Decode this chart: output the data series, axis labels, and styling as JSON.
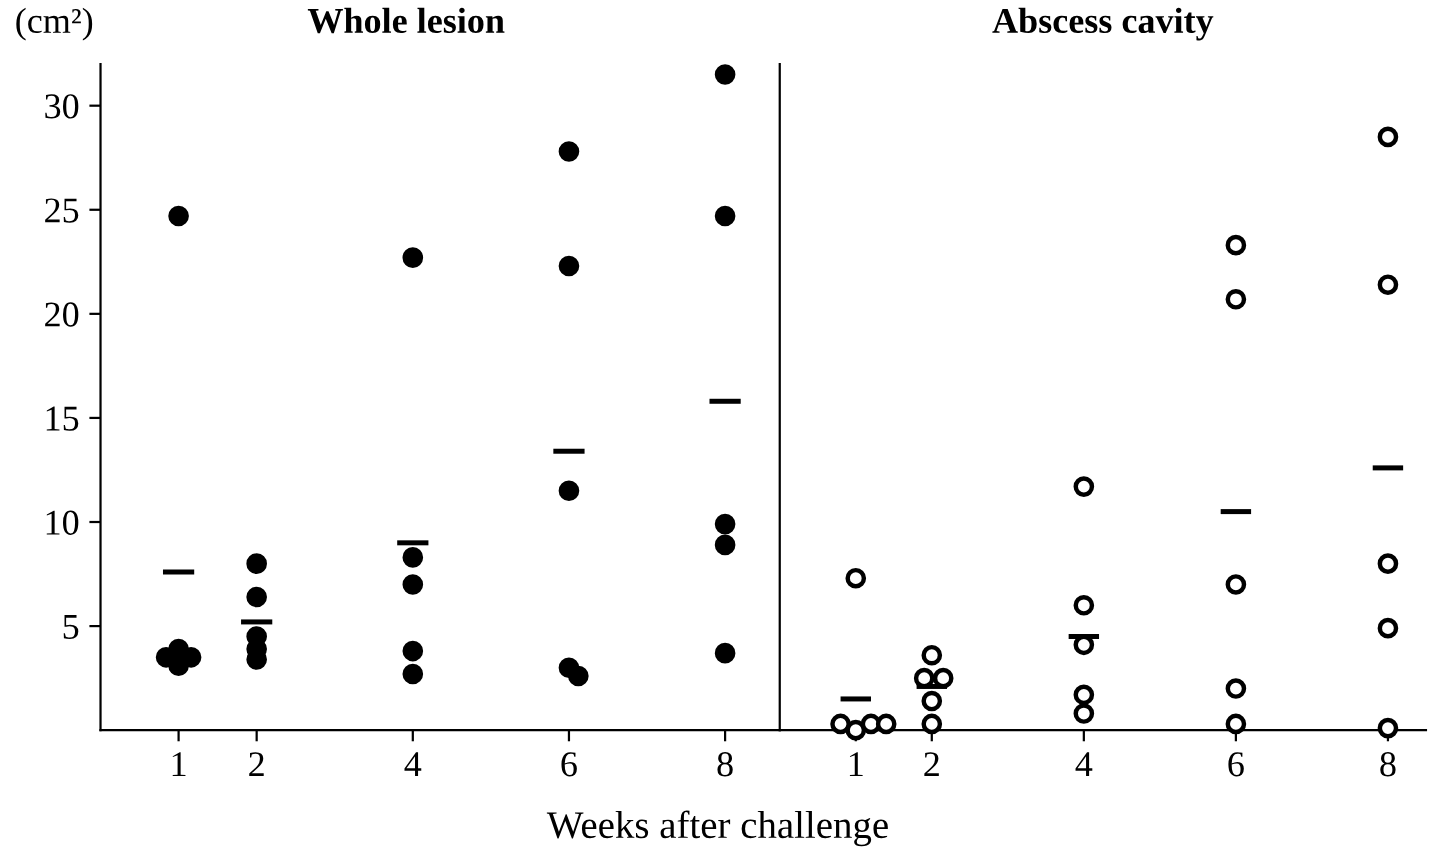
{
  "chart_data": [
    {
      "type": "scatter",
      "title": "Whole lesion",
      "ylabel": "(cm²)",
      "xlabel": "Weeks after challenge",
      "xlim": [
        0,
        8.7
      ],
      "xticks": [
        1,
        2,
        4,
        6,
        8
      ],
      "ylim": [
        0,
        32
      ],
      "yticks": [
        5,
        10,
        15,
        20,
        25,
        30
      ],
      "grid": false,
      "series": [
        {
          "color": "#000000",
          "marker": "circle",
          "x": [
            1,
            1,
            0.84,
            1.16,
            1,
            2,
            2,
            2,
            2,
            2,
            4,
            4,
            4,
            4,
            4,
            6,
            6,
            6,
            6,
            6.12,
            8,
            8,
            8,
            8,
            8
          ],
          "values": [
            24.7,
            3.9,
            3.5,
            3.5,
            3.1,
            8.0,
            6.4,
            4.5,
            3.9,
            3.4,
            22.7,
            8.3,
            7.0,
            3.8,
            2.7,
            27.8,
            22.3,
            11.5,
            3.0,
            2.6,
            31.5,
            24.7,
            9.9,
            8.9,
            3.7
          ]
        },
        {
          "type": "line",
          "color": "#000000",
          "marker": "none",
          "x": [
            0.8,
            1.2
          ],
          "values": [
            7.6,
            7.6
          ]
        },
        {
          "type": "line",
          "color": "#000000",
          "marker": "none",
          "x": [
            1.8,
            2.2
          ],
          "values": [
            5.2,
            5.2
          ]
        },
        {
          "type": "line",
          "color": "#000000",
          "marker": "none",
          "x": [
            3.8,
            4.2
          ],
          "values": [
            9.0,
            9.0
          ]
        },
        {
          "type": "line",
          "color": "#000000",
          "marker": "none",
          "x": [
            5.8,
            6.2
          ],
          "values": [
            13.4,
            13.4
          ]
        },
        {
          "type": "line",
          "color": "#000000",
          "marker": "none",
          "x": [
            7.8,
            8.2
          ],
          "values": [
            15.8,
            15.8
          ]
        }
      ]
    },
    {
      "type": "scatter",
      "title": "Abscess cavity",
      "xlim": [
        0,
        8.5
      ],
      "xticks": [
        1,
        2,
        4,
        6,
        8
      ],
      "ylim": [
        0,
        32
      ],
      "tick_labels": "x",
      "grid": false,
      "series": [
        {
          "color": "#ffffff",
          "marker": "circle",
          "x": [
            1,
            0.8,
            1,
            1.2,
            1.4,
            2,
            1.9,
            2.15,
            2,
            2,
            4,
            4,
            4,
            4,
            4,
            6,
            6,
            6,
            6,
            6,
            8,
            8,
            8,
            8,
            8
          ],
          "values": [
            7.3,
            0.3,
            0.0,
            0.3,
            0.3,
            3.6,
            2.5,
            2.5,
            1.4,
            0.3,
            11.7,
            6.0,
            4.1,
            1.7,
            0.8,
            23.3,
            20.7,
            7.0,
            2.0,
            0.3,
            28.5,
            21.4,
            8.0,
            4.9,
            0.1
          ]
        },
        {
          "type": "line",
          "color": "#000000",
          "marker": "none",
          "x": [
            0.8,
            1.2
          ],
          "values": [
            1.5,
            1.5
          ]
        },
        {
          "type": "line",
          "color": "#000000",
          "marker": "none",
          "x": [
            1.8,
            2.2
          ],
          "values": [
            2.1,
            2.1
          ]
        },
        {
          "type": "line",
          "color": "#000000",
          "marker": "none",
          "x": [
            3.8,
            4.2
          ],
          "values": [
            4.5,
            4.5
          ]
        },
        {
          "type": "line",
          "color": "#000000",
          "marker": "none",
          "x": [
            5.8,
            6.2
          ],
          "values": [
            10.5,
            10.5
          ]
        },
        {
          "type": "line",
          "color": "#000000",
          "marker": "none",
          "x": [
            7.8,
            8.2
          ],
          "values": [
            12.6,
            12.6
          ]
        }
      ]
    }
  ]
}
